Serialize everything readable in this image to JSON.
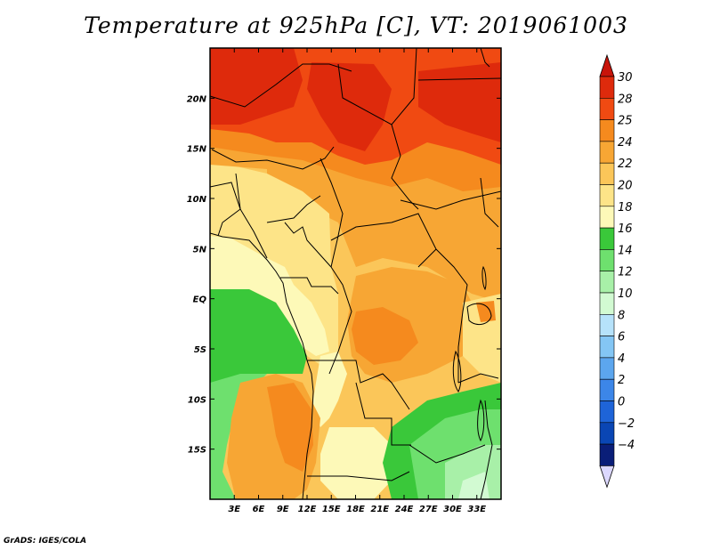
{
  "title": "Temperature at 925hPa [C], VT: 2019061003",
  "credit": "GrADS: IGES/COLA",
  "map": {
    "lon_range": [
      0,
      36
    ],
    "lat_range": [
      -20,
      25
    ],
    "lon_ticks": [
      {
        "value": 3,
        "label": "3E"
      },
      {
        "value": 6,
        "label": "6E"
      },
      {
        "value": 9,
        "label": "9E"
      },
      {
        "value": 12,
        "label": "12E"
      },
      {
        "value": 15,
        "label": "15E"
      },
      {
        "value": 18,
        "label": "18E"
      },
      {
        "value": 21,
        "label": "21E"
      },
      {
        "value": 24,
        "label": "24E"
      },
      {
        "value": 27,
        "label": "27E"
      },
      {
        "value": 30,
        "label": "30E"
      },
      {
        "value": 33,
        "label": "33E"
      }
    ],
    "lat_ticks": [
      {
        "value": 20,
        "label": "20N"
      },
      {
        "value": 15,
        "label": "15N"
      },
      {
        "value": 10,
        "label": "10N"
      },
      {
        "value": 5,
        "label": "5N"
      },
      {
        "value": 0,
        "label": "EQ"
      },
      {
        "value": -5,
        "label": "5S"
      },
      {
        "value": -10,
        "label": "10S"
      },
      {
        "value": -15,
        "label": "15S"
      }
    ]
  },
  "colorbar": {
    "levels": [
      "30",
      "28",
      "25",
      "24",
      "22",
      "20",
      "18",
      "16",
      "14",
      "12",
      "10",
      "8",
      "6",
      "4",
      "2",
      "0",
      "−2",
      "−4"
    ],
    "top_arrow_color": "#c8140a",
    "bottom_arrow_color": "#dcd8ff",
    "bands": [
      "#de2a0c",
      "#f04a12",
      "#f58a1e",
      "#f7a634",
      "#fbc659",
      "#fde488",
      "#fdf9b8",
      "#3ac83a",
      "#6ee06e",
      "#a8f0a8",
      "#d2fad2",
      "#b6e2fa",
      "#84c6f4",
      "#5ca6ee",
      "#3c86e8",
      "#1e64d8",
      "#0a46b4",
      "#0a1e78"
    ]
  },
  "color_scale": {
    "c30": "#de2a0c",
    "c28": "#f04a12",
    "c25": "#f58a1e",
    "c24": "#f7a634",
    "c22": "#fbc659",
    "c20": "#fde488",
    "c18": "#fdf9b8",
    "c16": "#3ac83a",
    "c14": "#6ee06e",
    "c12": "#a8f0a8",
    "c10": "#d2fad2"
  }
}
